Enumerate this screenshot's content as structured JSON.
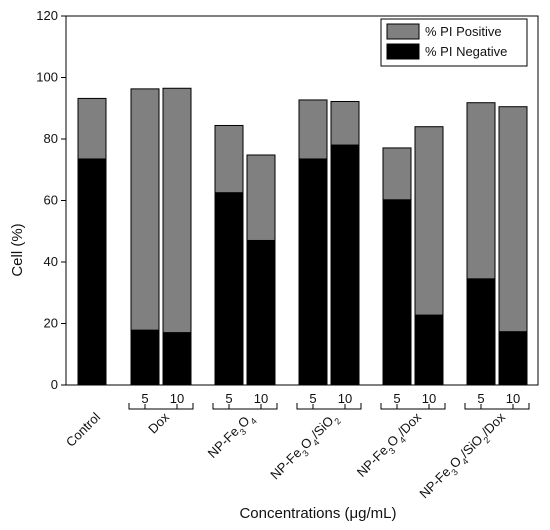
{
  "chart_data": {
    "type": "bar",
    "stacked": true,
    "ylabel": "Cell (%)",
    "xlabel": "Concentrations (μg/mL)",
    "ylim": [
      0,
      120
    ],
    "yticks": [
      0,
      20,
      40,
      60,
      80,
      100,
      120
    ],
    "grid": false,
    "legend_position": "top-right",
    "colors": {
      "pi_positive": "#808080",
      "pi_negative": "#000000"
    },
    "series": [
      {
        "name": "% PI Positive",
        "key": "pi_positive"
      },
      {
        "name": "% PI Negative",
        "key": "pi_negative"
      }
    ],
    "groups": [
      {
        "name": "Control",
        "name_parts": [
          {
            "t": "Control"
          }
        ],
        "bars": [
          {
            "conc": "",
            "pi_negative": 73.5,
            "total": 93.2
          }
        ]
      },
      {
        "name": "Dox",
        "name_parts": [
          {
            "t": "Dox"
          }
        ],
        "bars": [
          {
            "conc": "5",
            "pi_negative": 17.8,
            "total": 96.3
          },
          {
            "conc": "10",
            "pi_negative": 17.0,
            "total": 96.5
          }
        ]
      },
      {
        "name": "NP-Fe3O4",
        "name_parts": [
          {
            "t": "NP-Fe"
          },
          {
            "t": "3",
            "sub": true
          },
          {
            "t": "O"
          },
          {
            "t": "4",
            "sub": true
          }
        ],
        "bars": [
          {
            "conc": "5",
            "pi_negative": 62.5,
            "total": 84.4
          },
          {
            "conc": "10",
            "pi_negative": 47.0,
            "total": 74.8
          }
        ]
      },
      {
        "name": "NP-Fe3O4/SiO2",
        "name_parts": [
          {
            "t": "NP-Fe"
          },
          {
            "t": "3",
            "sub": true
          },
          {
            "t": "O"
          },
          {
            "t": "4",
            "sub": true
          },
          {
            "t": "/SiO"
          },
          {
            "t": "2",
            "sub": true
          }
        ],
        "bars": [
          {
            "conc": "5",
            "pi_negative": 73.5,
            "total": 92.7
          },
          {
            "conc": "10",
            "pi_negative": 78.0,
            "total": 92.2
          }
        ]
      },
      {
        "name": "NP-Fe3O4/Dox",
        "name_parts": [
          {
            "t": "NP-Fe"
          },
          {
            "t": "3",
            "sub": true
          },
          {
            "t": "O"
          },
          {
            "t": "4",
            "sub": true
          },
          {
            "t": "/Dox"
          }
        ],
        "bars": [
          {
            "conc": "5",
            "pi_negative": 60.2,
            "total": 77.1
          },
          {
            "conc": "10",
            "pi_negative": 22.7,
            "total": 84.0
          }
        ]
      },
      {
        "name": "NP-Fe3O4/SiO2/Dox",
        "name_parts": [
          {
            "t": "NP-Fe"
          },
          {
            "t": "3",
            "sub": true
          },
          {
            "t": "O"
          },
          {
            "t": "4",
            "sub": true
          },
          {
            "t": "/SiO"
          },
          {
            "t": "2",
            "sub": true
          },
          {
            "t": "/Dox"
          }
        ],
        "bars": [
          {
            "conc": "5",
            "pi_negative": 34.5,
            "total": 91.8
          },
          {
            "conc": "10",
            "pi_negative": 17.3,
            "total": 90.5
          }
        ]
      }
    ]
  }
}
